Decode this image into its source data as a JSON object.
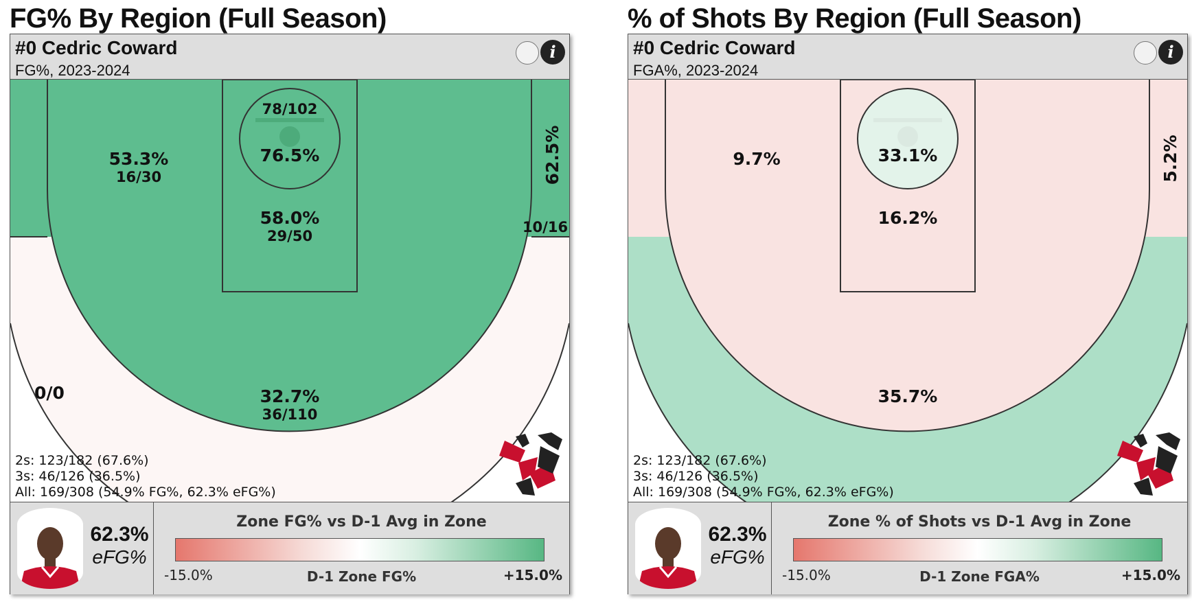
{
  "panels": [
    {
      "title": "FG% By Region (Full Season)",
      "player_name": "#0 Cedric Coward",
      "subtitle": "FG%, 2023-2024",
      "stats": [
        "2s: 123/182 (67.6%)",
        "3s: 46/126 (36.5%)",
        "All: 169/308 (54.9% FG%, 62.3% eFG%)"
      ],
      "efg_value": "62.3%",
      "efg_label": "eFG%",
      "legend_title": "Zone FG% vs D-1 Avg in Zone",
      "legend_min": "-15.0%",
      "legend_max": "+15.0%",
      "legend_mid": "D-1 Zone FG%"
    },
    {
      "title": "% of Shots By Region (Full Season)",
      "player_name": "#0 Cedric Coward",
      "subtitle": "FGA%, 2023-2024",
      "stats": [
        "2s: 123/182 (67.6%)",
        "3s: 46/126 (36.5%)",
        "All: 169/308 (54.9% FG%, 62.3% eFG%)"
      ],
      "efg_value": "62.3%",
      "efg_label": "eFG%",
      "legend_title": "Zone % of Shots vs D-1 Avg in Zone",
      "legend_min": "-15.0%",
      "legend_max": "+15.0%",
      "legend_mid": "D-1 Zone FGA%"
    }
  ],
  "chart_data": [
    {
      "type": "heatmap",
      "title": "FG% By Region (Full Season)",
      "colors": {
        "above_avg": "#5ebd8f",
        "near_avg": "#fdf6f5",
        "empty": "#ffffff"
      },
      "zones": [
        {
          "zone": "restricted-area",
          "value": "76.5%",
          "made_att": "78/102",
          "color": "#5ebd8f"
        },
        {
          "zone": "paint",
          "value": "58.0%",
          "made_att": "29/50",
          "color": "#5ebd8f"
        },
        {
          "zone": "midrange",
          "value": "53.3%",
          "made_att": "16/30",
          "color": "#5ebd8f"
        },
        {
          "zone": "right-corner-three",
          "value": "62.5%",
          "made_att": "10/16",
          "color": "#5ebd8f"
        },
        {
          "zone": "above-break-three",
          "value": "32.7%",
          "made_att": "36/110",
          "color": "#fdf6f5"
        },
        {
          "zone": "left-corner-three",
          "value": "0/0",
          "made_att": "",
          "color": "#fdf6f5"
        },
        {
          "zone": "beyond-arc",
          "value": "",
          "made_att": "",
          "color": "#ffffff"
        }
      ]
    },
    {
      "type": "heatmap",
      "title": "% of Shots By Region (Full Season)",
      "colors": {
        "below_avg": "#f9e3e1",
        "above_avg": "#addfc7",
        "slightly_above": "#e3f3ea"
      },
      "zones": [
        {
          "zone": "restricted-area",
          "value": "33.1%",
          "made_att": "",
          "color": "#e3f3ea"
        },
        {
          "zone": "paint",
          "value": "16.2%",
          "made_att": "",
          "color": "#f9e3e1"
        },
        {
          "zone": "midrange",
          "value": "9.7%",
          "made_att": "",
          "color": "#f9e3e1"
        },
        {
          "zone": "right-corner-three",
          "value": "5.2%",
          "made_att": "",
          "color": "#f9e3e1"
        },
        {
          "zone": "above-break-three",
          "value": "35.7%",
          "made_att": "",
          "color": "#addfc7"
        },
        {
          "zone": "left-corner-three",
          "value": "",
          "made_att": "",
          "color": "#addfc7"
        },
        {
          "zone": "beyond-arc",
          "value": "",
          "made_att": "",
          "color": "#ffffff"
        }
      ]
    }
  ]
}
